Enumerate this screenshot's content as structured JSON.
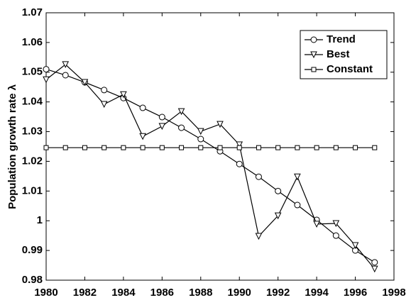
{
  "chart_data": {
    "type": "line",
    "ylabel": "Population growth rate λ",
    "x": [
      1980,
      1981,
      1982,
      1983,
      1984,
      1985,
      1986,
      1987,
      1988,
      1989,
      1990,
      1991,
      1992,
      1993,
      1994,
      1995,
      1996,
      1997
    ],
    "series": [
      {
        "name": "Trend",
        "color": "#000000",
        "marker": "circle",
        "values": [
          1.051,
          1.049,
          1.0466,
          1.044,
          1.0413,
          1.038,
          1.0349,
          1.0313,
          1.0275,
          1.0234,
          1.0191,
          1.0148,
          1.01,
          1.0053,
          1.0003,
          0.995,
          0.99,
          0.986
        ]
      },
      {
        "name": "Best",
        "color": "#000000",
        "marker": "triangle",
        "values": [
          1.0475,
          1.0526,
          1.0466,
          1.0392,
          1.0425,
          1.0284,
          1.0318,
          1.0368,
          1.0301,
          1.0325,
          1.0256,
          0.9948,
          1.0017,
          1.0148,
          0.9989,
          0.9991,
          0.9917,
          0.9838
        ]
      },
      {
        "name": "Constant",
        "color": "#000000",
        "marker": "square",
        "values": [
          1.0246,
          1.0246,
          1.0246,
          1.0246,
          1.0246,
          1.0246,
          1.0246,
          1.0246,
          1.0246,
          1.0246,
          1.0246,
          1.0246,
          1.0246,
          1.0246,
          1.0246,
          1.0246,
          1.0246,
          1.0246
        ]
      }
    ],
    "xlim": [
      1980,
      1998
    ],
    "xticks": [
      1980,
      1982,
      1984,
      1986,
      1988,
      1990,
      1992,
      1994,
      1996,
      1998
    ],
    "ylim": [
      0.98,
      1.07
    ],
    "yticks": [
      0.98,
      0.99,
      1,
      1.01,
      1.02,
      1.03,
      1.04,
      1.05,
      1.06,
      1.07
    ],
    "legend": "upper right"
  }
}
